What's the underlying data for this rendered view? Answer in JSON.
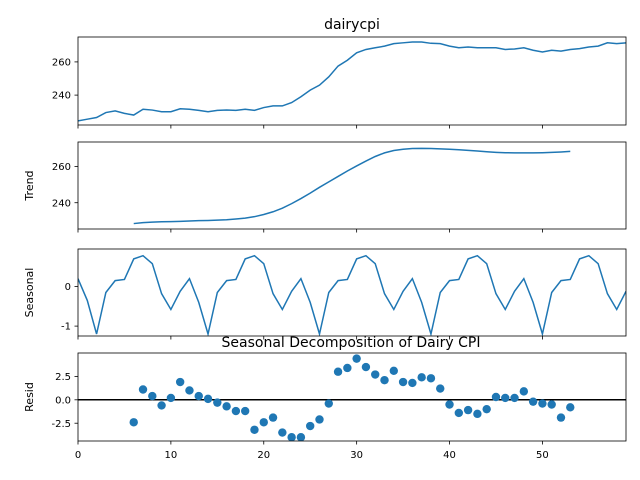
{
  "figure_title": "Seasonal Decomposition of Dairy CPI",
  "colors": {
    "series": "#1f77b4",
    "axis": "#000000",
    "zero_line": "#000000"
  },
  "chart_data": [
    {
      "type": "line",
      "title": "dairycpi",
      "ylabel": "",
      "xlim": [
        0,
        59
      ],
      "ylim": [
        222,
        275
      ],
      "yticks": [
        240,
        260
      ],
      "x": [
        0,
        1,
        2,
        3,
        4,
        5,
        6,
        7,
        8,
        9,
        10,
        11,
        12,
        13,
        14,
        15,
        16,
        17,
        18,
        19,
        20,
        21,
        22,
        23,
        24,
        25,
        26,
        27,
        28,
        29,
        30,
        31,
        32,
        33,
        34,
        35,
        36,
        37,
        38,
        39,
        40,
        41,
        42,
        43,
        44,
        45,
        46,
        47,
        48,
        49,
        50,
        51,
        52,
        53,
        54,
        55,
        56,
        57,
        58,
        59
      ],
      "values": [
        224.5,
        225.5,
        226.5,
        229.5,
        230.5,
        229,
        228,
        231.5,
        231,
        230,
        230,
        231.8,
        231.5,
        230.8,
        230,
        230.8,
        231,
        230.8,
        231.5,
        230.8,
        232.5,
        233.5,
        233.5,
        235.5,
        239,
        243,
        246,
        251,
        257.5,
        261,
        265.5,
        267.5,
        268.5,
        269.5,
        271,
        271.5,
        272,
        272,
        271.2,
        271,
        269.5,
        268.5,
        269,
        268.5,
        268.5,
        268.5,
        267.5,
        267.8,
        268.5,
        267,
        266,
        267,
        266.5,
        267.5,
        268,
        269,
        269.5,
        271.5,
        271,
        271.5
      ]
    },
    {
      "type": "line",
      "title": "",
      "ylabel": "Trend",
      "xlim": [
        0,
        59
      ],
      "ylim": [
        225.5,
        273.5
      ],
      "yticks": [
        240,
        260
      ],
      "x": [
        6,
        7,
        8,
        9,
        10,
        11,
        12,
        13,
        14,
        15,
        16,
        17,
        18,
        19,
        20,
        21,
        22,
        23,
        24,
        25,
        26,
        27,
        28,
        29,
        30,
        31,
        32,
        33,
        34,
        35,
        36,
        37,
        38,
        39,
        40,
        41,
        42,
        43,
        44,
        45,
        46,
        47,
        48,
        49,
        50,
        51,
        52,
        53
      ],
      "values": [
        228.5,
        229,
        229.3,
        229.5,
        229.6,
        229.7,
        229.9,
        230.1,
        230.2,
        230.4,
        230.6,
        231,
        231.5,
        232.3,
        233.5,
        235,
        237,
        239.5,
        242.3,
        245.3,
        248.5,
        251.5,
        254.5,
        257.5,
        260.3,
        263,
        265.5,
        267.5,
        268.8,
        269.5,
        269.9,
        270,
        269.9,
        269.7,
        269.5,
        269.2,
        268.9,
        268.5,
        268.1,
        267.8,
        267.6,
        267.5,
        267.5,
        267.5,
        267.6,
        267.8,
        268,
        268.3
      ]
    },
    {
      "type": "line",
      "title": "",
      "ylabel": "Seasonal",
      "xlim": [
        0,
        59
      ],
      "ylim": [
        -1.25,
        0.95
      ],
      "yticks": [
        -1,
        0
      ],
      "x": [
        0,
        1,
        2,
        3,
        4,
        5,
        6,
        7,
        8,
        9,
        10,
        11,
        12,
        13,
        14,
        15,
        16,
        17,
        18,
        19,
        20,
        21,
        22,
        23,
        24,
        25,
        26,
        27,
        28,
        29,
        30,
        31,
        32,
        33,
        34,
        35,
        36,
        37,
        38,
        39,
        40,
        41,
        42,
        43,
        44,
        45,
        46,
        47,
        48,
        49,
        50,
        51,
        52,
        53,
        54,
        55,
        56,
        57,
        58,
        59
      ],
      "values": [
        0.2,
        -0.35,
        -1.2,
        -0.15,
        0.15,
        0.18,
        0.7,
        0.78,
        0.58,
        -0.18,
        -0.58,
        -0.12,
        0.2,
        -0.4,
        -1.2,
        -0.15,
        0.15,
        0.18,
        0.7,
        0.78,
        0.58,
        -0.18,
        -0.58,
        -0.12,
        0.2,
        -0.4,
        -1.2,
        -0.15,
        0.15,
        0.18,
        0.7,
        0.78,
        0.58,
        -0.18,
        -0.58,
        -0.12,
        0.2,
        -0.4,
        -1.2,
        -0.15,
        0.15,
        0.18,
        0.7,
        0.78,
        0.58,
        -0.18,
        -0.58,
        -0.12,
        0.2,
        -0.4,
        -1.2,
        -0.15,
        0.15,
        0.18,
        0.7,
        0.78,
        0.58,
        -0.18,
        -0.58,
        -0.12
      ]
    },
    {
      "type": "scatter",
      "title": "",
      "ylabel": "Resid",
      "xlabel": "",
      "xlim": [
        0,
        59
      ],
      "ylim": [
        -4.4,
        5.0
      ],
      "yticks": [
        -2.5,
        0.0,
        2.5
      ],
      "xticks": [
        0,
        10,
        20,
        30,
        40,
        50
      ],
      "x": [
        6,
        7,
        8,
        9,
        10,
        11,
        12,
        13,
        14,
        15,
        16,
        17,
        18,
        19,
        20,
        21,
        22,
        23,
        24,
        25,
        26,
        27,
        28,
        29,
        30,
        31,
        32,
        33,
        34,
        35,
        36,
        37,
        38,
        39,
        40,
        41,
        42,
        43,
        44,
        45,
        46,
        47,
        48,
        49,
        50,
        51,
        52,
        53
      ],
      "values": [
        -2.4,
        1.1,
        0.4,
        -0.6,
        0.2,
        1.9,
        1.0,
        0.4,
        0.1,
        -0.3,
        -0.7,
        -1.2,
        -1.2,
        -3.2,
        -2.4,
        -1.9,
        -3.5,
        -4.0,
        -4.0,
        -2.8,
        -2.1,
        -0.4,
        3.0,
        3.4,
        4.4,
        3.5,
        2.7,
        2.1,
        3.1,
        1.9,
        1.8,
        2.4,
        2.3,
        1.2,
        -0.5,
        -1.4,
        -1.1,
        -1.5,
        -1.0,
        0.3,
        0.2,
        0.2,
        0.9,
        -0.2,
        -0.4,
        -0.5,
        -1.9,
        -0.8
      ]
    }
  ]
}
